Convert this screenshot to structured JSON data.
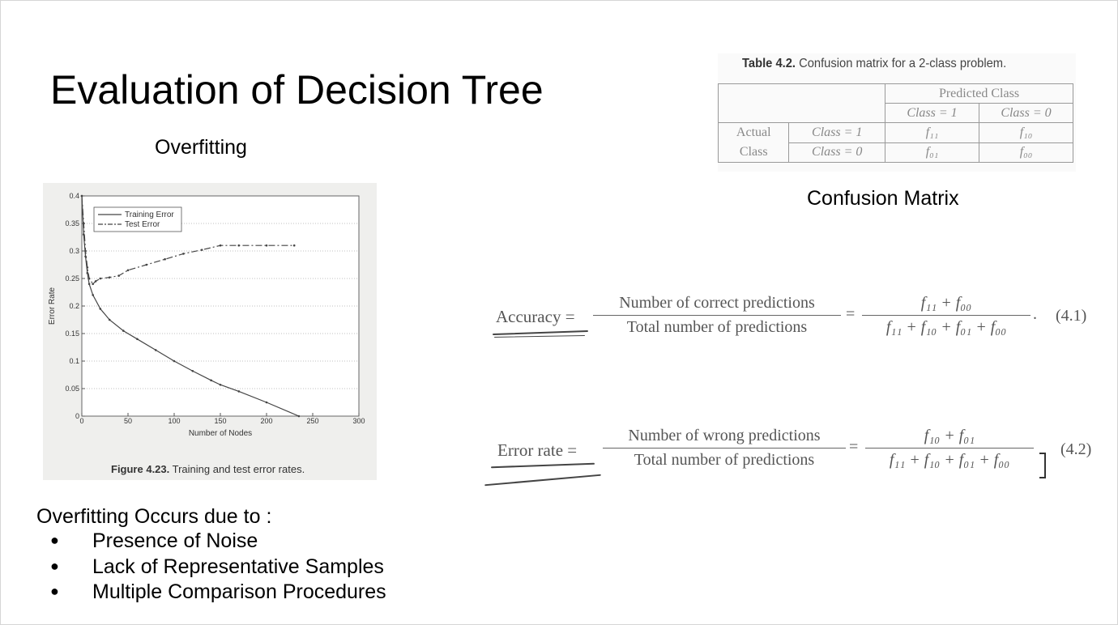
{
  "slide": {
    "title": "Evaluation of Decision Tree",
    "subtitle": "Overfitting",
    "confusion_caption": "Confusion Matrix"
  },
  "figure": {
    "caption_label": "Figure 4.23.",
    "caption_text": "Training and test error rates."
  },
  "chart_data": {
    "type": "line",
    "xlabel": "Number of Nodes",
    "ylabel": "Error Rate",
    "xlim": [
      0,
      300
    ],
    "ylim": [
      0,
      0.4
    ],
    "xticks": [
      0,
      50,
      100,
      150,
      200,
      250,
      300
    ],
    "yticks": [
      0,
      0.05,
      0.1,
      0.15,
      0.2,
      0.25,
      0.3,
      0.35,
      0.4
    ],
    "grid": true,
    "legend_position": "top-left",
    "series": [
      {
        "name": "Training Error",
        "style": "solid",
        "color": "#444444",
        "x": [
          0,
          2,
          4,
          6,
          8,
          12,
          20,
          30,
          45,
          60,
          80,
          100,
          120,
          140,
          150,
          170,
          200,
          235
        ],
        "y": [
          0.4,
          0.33,
          0.29,
          0.26,
          0.24,
          0.22,
          0.195,
          0.175,
          0.155,
          0.14,
          0.12,
          0.1,
          0.082,
          0.065,
          0.057,
          0.045,
          0.025,
          0.0
        ]
      },
      {
        "name": "Test Error",
        "style": "dash-dot",
        "color": "#444444",
        "x": [
          0,
          2,
          4,
          6,
          8,
          12,
          15,
          20,
          30,
          40,
          50,
          70,
          90,
          110,
          130,
          150,
          170,
          200,
          230
        ],
        "y": [
          0.4,
          0.35,
          0.3,
          0.27,
          0.25,
          0.24,
          0.245,
          0.25,
          0.252,
          0.255,
          0.265,
          0.275,
          0.285,
          0.295,
          0.302,
          0.31,
          0.31,
          0.31,
          0.31
        ]
      }
    ]
  },
  "table": {
    "caption_label": "Table 4.2.",
    "caption_text": "Confusion matrix for a 2-class problem.",
    "predicted_header": "Predicted Class",
    "predicted_pos": "Class = 1",
    "predicted_neg": "Class = 0",
    "actual_line1": "Actual",
    "actual_line2": "Class",
    "actual_pos": "Class = 1",
    "actual_neg": "Class = 0",
    "f11": "f₁₁",
    "f10": "f₁₀",
    "f01": "f₀₁",
    "f00": "f₀₀"
  },
  "formulas": {
    "accuracy": {
      "lhs": "Accuracy =",
      "num": "Number of correct predictions",
      "den": "Total number of predictions",
      "num2": "f₁₁ + f₀₀",
      "den2": "f₁₁ + f₁₀ + f₀₁ + f₀₀",
      "tag": "(4.1)"
    },
    "error_rate": {
      "lhs": "Error rate =",
      "num": "Number of wrong predictions",
      "den": "Total number of predictions",
      "num2": "f₁₀ + f₀₁",
      "den2": "f₁₁ + f₁₀ + f₀₁ + f₀₀",
      "tag": "(4.2)"
    }
  },
  "causes": {
    "title": "Overfitting Occurs due to :",
    "items": [
      "Presence of  Noise",
      "Lack of Representative Samples",
      "Multiple Comparison Procedures"
    ]
  }
}
